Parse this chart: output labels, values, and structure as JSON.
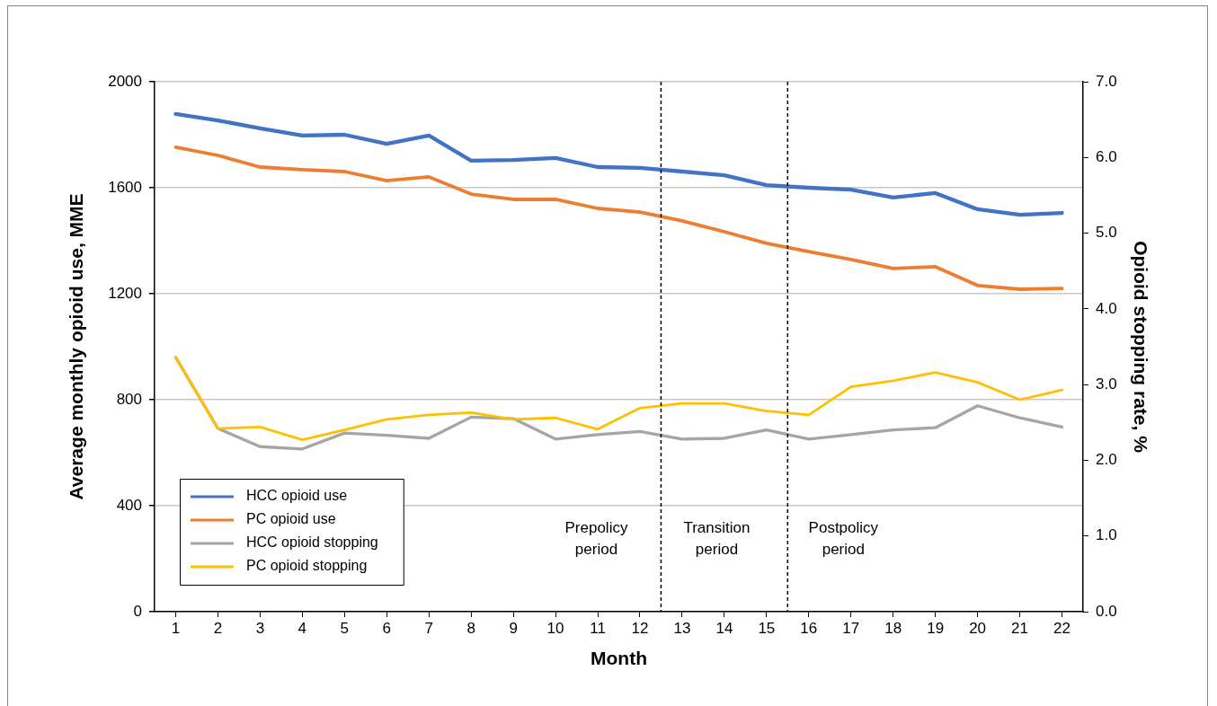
{
  "chart_data": {
    "type": "line",
    "xlabel": "Month",
    "ylabel": "Average monthly opioid use, MME",
    "y2label": "Opioid stopping rate, %",
    "x": [
      1,
      2,
      3,
      4,
      5,
      6,
      7,
      8,
      9,
      10,
      11,
      12,
      13,
      14,
      15,
      16,
      17,
      18,
      19,
      20,
      21,
      22
    ],
    "xlim": [
      0.5,
      22.5
    ],
    "xticks": [
      1,
      2,
      3,
      4,
      5,
      6,
      7,
      8,
      9,
      10,
      11,
      12,
      13,
      14,
      15,
      16,
      17,
      18,
      19,
      20,
      21,
      22
    ],
    "ylim": [
      0,
      2000
    ],
    "yticks": [
      0,
      400,
      800,
      1200,
      1600,
      2000
    ],
    "y2lim": [
      0,
      7
    ],
    "y2ticks": [
      {
        "value": 0,
        "label": "0.0"
      },
      {
        "value": 1,
        "label": "1.0"
      },
      {
        "value": 2,
        "label": "2.0"
      },
      {
        "value": 3,
        "label": "3.0"
      },
      {
        "value": 4,
        "label": "4.0"
      },
      {
        "value": 5,
        "label": "5.0"
      },
      {
        "value": 6,
        "label": "6.0"
      },
      {
        "value": 7,
        "label": "7.0"
      }
    ],
    "series": [
      {
        "name": "HCC opioid use",
        "color": "#4472c4",
        "values": [
          1878,
          1854,
          1824,
          1797,
          1800,
          1766,
          1797,
          1702,
          1705,
          1712,
          1678,
          1675,
          1661,
          1647,
          1610,
          1600,
          1593,
          1563,
          1580,
          1519,
          1498,
          1505
        ]
      },
      {
        "name": "PC opioid use",
        "color": "#ed7d31",
        "values": [
          1753,
          1722,
          1678,
          1668,
          1661,
          1627,
          1641,
          1576,
          1556,
          1556,
          1522,
          1508,
          1475,
          1434,
          1390,
          1359,
          1329,
          1295,
          1302,
          1231,
          1217,
          1220
        ]
      },
      {
        "name": "HCC opioid stopping",
        "color": "#a5a5a5",
        "axis": "y2",
        "values": [
          3.36,
          2.42,
          2.18,
          2.15,
          2.36,
          2.33,
          2.29,
          2.57,
          2.55,
          2.28,
          2.34,
          2.38,
          2.28,
          2.29,
          2.4,
          2.28,
          2.34,
          2.4,
          2.43,
          2.72,
          2.56,
          2.44
        ]
      },
      {
        "name": "PC opioid stopping",
        "color": "#ffc000",
        "axis": "y2",
        "values": [
          3.36,
          2.42,
          2.44,
          2.27,
          2.4,
          2.54,
          2.6,
          2.63,
          2.54,
          2.56,
          2.41,
          2.69,
          2.75,
          2.75,
          2.65,
          2.6,
          2.97,
          3.05,
          3.16,
          3.03,
          2.8,
          2.93
        ]
      }
    ],
    "ref_lines": [
      {
        "axis": "x",
        "value": 12.5,
        "color": "#000000",
        "line_style": "dashed"
      },
      {
        "axis": "x",
        "value": 15.5,
        "color": "#000000",
        "line_style": "dashed"
      }
    ],
    "annotations": [
      "Prepolicy period",
      "Transition period",
      "Postpolicy period"
    ],
    "grid": "y",
    "legend": "bottom left",
    "marker": "none",
    "line_style": "solid"
  }
}
